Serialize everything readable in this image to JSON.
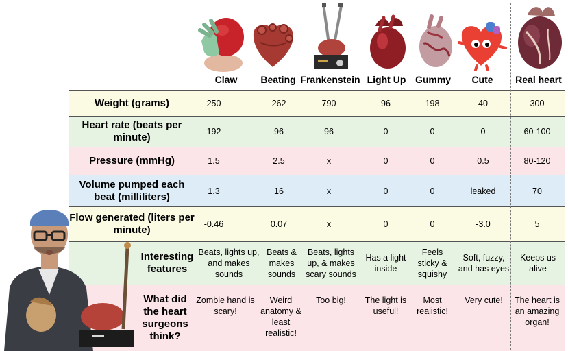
{
  "columns": [
    "Claw",
    "Beating",
    "Frankenstein",
    "Light Up",
    "Gummy",
    "Cute",
    "Real heart"
  ],
  "rows": [
    {
      "label": "Weight (grams)",
      "bg": "#fbfbe4",
      "values": [
        "250",
        "262",
        "790",
        "96",
        "198",
        "40",
        "300"
      ]
    },
    {
      "label": "Heart rate (beats per minute)",
      "bg": "#e7f3e2",
      "values": [
        "192",
        "96",
        "96",
        "0",
        "0",
        "0",
        "60-100"
      ]
    },
    {
      "label": "Pressure (mmHg)",
      "bg": "#fbe5e8",
      "values": [
        "1.5",
        "2.5",
        "x",
        "0",
        "0",
        "0.5",
        "80-120"
      ]
    },
    {
      "label": "Volume pumped each beat (milliliters)",
      "bg": "#ddecf6",
      "values": [
        "1.3",
        "16",
        "x",
        "0",
        "0",
        "leaked",
        "70"
      ]
    },
    {
      "label": "Flow generated (liters per minute)",
      "bg": "#fbfbe4",
      "values": [
        "-0.46",
        "0.07",
        "x",
        "0",
        "0",
        "-3.0",
        "5"
      ]
    },
    {
      "label": "Interesting features",
      "bg": "#e7f3e2",
      "values": [
        "Beats, lights up, and makes sounds",
        "Beats & makes sounds",
        "Beats, lights up, & makes scary sounds",
        "Has a light inside",
        "Feels sticky & squishy",
        "Soft, fuzzy, and has eyes",
        "Keeps us alive"
      ]
    },
    {
      "label": "What did the heart surgeons think?",
      "bg": "#fbe5e8",
      "values": [
        "Zombie hand is scary!",
        "Weird anatomy & least realistic!",
        "Too big!",
        "The light is useful!",
        "Most realistic!",
        "Very cute!",
        "The heart is an amazing organ!"
      ]
    }
  ],
  "icons": [
    "claw-heart-model",
    "beating-heart-model",
    "frankenstein-heart-model",
    "light-up-heart-model",
    "gummy-heart-model",
    "cute-heart-plush",
    "real-heart",
    "heart-surgeon-person"
  ],
  "colors": {
    "yellow": "#fbfbe4",
    "green": "#e7f3e2",
    "pink": "#fbe5e8",
    "blue": "#ddecf6"
  }
}
